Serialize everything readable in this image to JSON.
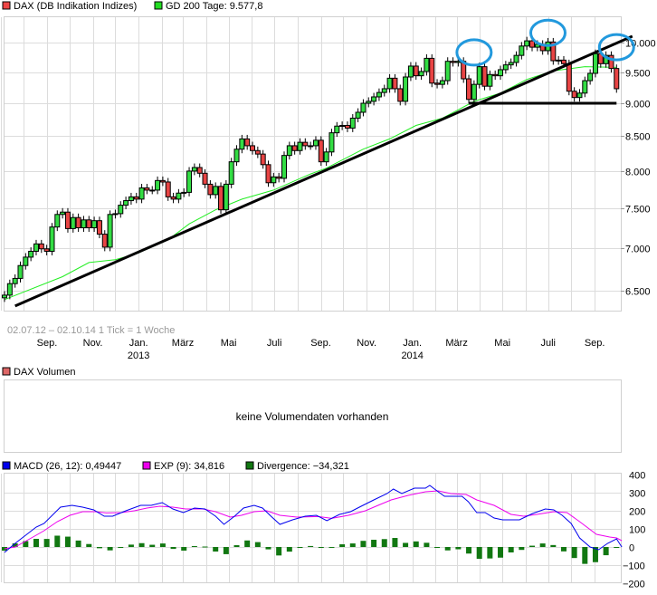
{
  "legend": {
    "price": {
      "label": "DAX (DB Indikation Indizes)",
      "color": "#ee4444"
    },
    "gd200": {
      "label": "GD 200 Tage: 9.577,8",
      "color": "#22dd22"
    },
    "volume": {
      "label": "DAX Volumen",
      "color": "#dd6666"
    },
    "macd": {
      "label": "MACD (26, 12): 0,49447",
      "color": "#0000ee"
    },
    "exp": {
      "label": "EXP (9): 34,816",
      "color": "#ee00ee"
    },
    "divergence": {
      "label": "Divergence: −34,321",
      "color": "#117711"
    }
  },
  "range_note": "02.07.12 – 02.10.14   1 Tick = 1 Woche",
  "volume_message": "keine Volumendaten vorhanden",
  "chart_data": [
    {
      "type": "candlestick",
      "scale": "log",
      "ylim": [
        6300,
        10200
      ],
      "grid": true,
      "start_date": "2012-07-02",
      "end_date": "2014-10-02",
      "interval": "week",
      "y_ticks": [
        {
          "value": 6500,
          "label": "6.500"
        },
        {
          "value": 7000,
          "label": "7.000"
        },
        {
          "value": 7500,
          "label": "7.500"
        },
        {
          "value": 8000,
          "label": "8.000"
        },
        {
          "value": 8500,
          "label": "8.500"
        },
        {
          "value": 9000,
          "label": "9.000"
        },
        {
          "value": 9500,
          "label": "9.500"
        },
        {
          "value": 10000,
          "label": "10.000"
        }
      ],
      "x_ticks": [
        {
          "date": "2012-09-01",
          "label": "Sep."
        },
        {
          "date": "2012-11-01",
          "label": "Nov."
        },
        {
          "date": "2013-01-01",
          "label": "Jan.",
          "year": "2013"
        },
        {
          "date": "2013-03-01",
          "label": "März"
        },
        {
          "date": "2013-05-01",
          "label": "Mai"
        },
        {
          "date": "2013-07-01",
          "label": "Juli"
        },
        {
          "date": "2013-09-01",
          "label": "Sep."
        },
        {
          "date": "2013-11-01",
          "label": "Nov."
        },
        {
          "date": "2014-01-01",
          "label": "Jan.",
          "year": "2014"
        },
        {
          "date": "2014-03-01",
          "label": "März"
        },
        {
          "date": "2014-05-01",
          "label": "Mai"
        },
        {
          "date": "2014-07-01",
          "label": "Juli"
        },
        {
          "date": "2014-09-01",
          "label": "Sep."
        }
      ],
      "first_open": 6420,
      "weekly_close": [
        6450,
        6580,
        6640,
        6790,
        6890,
        6960,
        7050,
        6990,
        6960,
        7260,
        7420,
        7450,
        7240,
        7380,
        7250,
        7350,
        7250,
        7340,
        7170,
        7010,
        7420,
        7430,
        7540,
        7600,
        7650,
        7620,
        7770,
        7740,
        7740,
        7870,
        7850,
        7650,
        7620,
        7700,
        7710,
        8000,
        8050,
        7970,
        7820,
        7680,
        7790,
        7480,
        7820,
        8130,
        8310,
        8460,
        8360,
        8290,
        8240,
        8090,
        7840,
        7920,
        7900,
        8220,
        8360,
        8290,
        8410,
        8360,
        8360,
        8440,
        8130,
        8270,
        8550,
        8650,
        8660,
        8620,
        8770,
        8860,
        9000,
        9030,
        9100,
        9170,
        9230,
        9400,
        9230,
        9030,
        9420,
        9600,
        9440,
        9510,
        9730,
        9320,
        9300,
        9360,
        9680,
        9660,
        9680,
        9390,
        9060,
        9300,
        9590,
        9270,
        9460,
        9440,
        9540,
        9620,
        9660,
        9780,
        9940,
        10030,
        9920,
        9970,
        9860,
        10010,
        9690,
        9700,
        9640,
        9190,
        9090,
        9160,
        9360,
        9480,
        9810,
        9640,
        9780,
        9560,
        9230
      ],
      "gd200": [
        [
          0,
          6400
        ],
        [
          11,
          6660
        ],
        [
          16,
          6825
        ],
        [
          21,
          6860
        ],
        [
          25,
          6930
        ],
        [
          31,
          7100
        ],
        [
          35,
          7300
        ],
        [
          40,
          7480
        ],
        [
          45,
          7620
        ],
        [
          51,
          7740
        ],
        [
          58,
          7960
        ],
        [
          61,
          8040
        ],
        [
          68,
          8310
        ],
        [
          73,
          8460
        ],
        [
          78,
          8660
        ],
        [
          83,
          8770
        ],
        [
          89,
          9030
        ],
        [
          94,
          9160
        ],
        [
          99,
          9380
        ],
        [
          104,
          9520
        ],
        [
          110,
          9590
        ],
        [
          116,
          9578
        ]
      ],
      "annotations": {
        "trend_line": [
          [
            2,
            6330
          ],
          [
            119,
            10110
          ]
        ],
        "support_line": {
          "value": 9000,
          "from_week": 88,
          "to_week": 116
        },
        "circles": [
          [
            89,
            9830
          ],
          [
            103,
            10170
          ],
          [
            116,
            9920
          ]
        ],
        "circle_color": "#2299dd"
      }
    },
    {
      "type": "line",
      "ylim": [
        -200,
        400
      ],
      "y_ticks": [
        400,
        300,
        200,
        100,
        0,
        -100,
        -200
      ],
      "grid": true,
      "series": [
        {
          "name": "MACD (26, 12)",
          "color": "#0000ee",
          "points": [
            [
              0,
              -30
            ],
            [
              2,
              20
            ],
            [
              6,
              110
            ],
            [
              7.5,
              130
            ],
            [
              10.6,
              220
            ],
            [
              12.8,
              230
            ],
            [
              14.8,
              220
            ],
            [
              16.9,
              205
            ],
            [
              18.9,
              170
            ],
            [
              20.5,
              170
            ],
            [
              23,
              200
            ],
            [
              25.8,
              230
            ],
            [
              27.8,
              230
            ],
            [
              29.9,
              245
            ],
            [
              31.9,
              210
            ],
            [
              33.9,
              190
            ],
            [
              36,
              215
            ],
            [
              38,
              210
            ],
            [
              40,
              170
            ],
            [
              41.6,
              125
            ],
            [
              43.6,
              170
            ],
            [
              45.3,
              215
            ],
            [
              47.3,
              230
            ],
            [
              48.9,
              215
            ],
            [
              50.5,
              170
            ],
            [
              52.2,
              125
            ],
            [
              54.6,
              150
            ],
            [
              57,
              170
            ],
            [
              59.1,
              175
            ],
            [
              61.1,
              145
            ],
            [
              63.5,
              180
            ],
            [
              65.6,
              195
            ],
            [
              67.6,
              225
            ],
            [
              70,
              260
            ],
            [
              72.5,
              295
            ],
            [
              73.7,
              320
            ],
            [
              75.3,
              295
            ],
            [
              77.7,
              325
            ],
            [
              79.8,
              325
            ],
            [
              80.6,
              340
            ],
            [
              82.2,
              305
            ],
            [
              83.4,
              280
            ],
            [
              86.7,
              280
            ],
            [
              87.9,
              250
            ],
            [
              89.5,
              190
            ],
            [
              91.1,
              190
            ],
            [
              92.8,
              160
            ],
            [
              94.4,
              150
            ],
            [
              97.6,
              150
            ],
            [
              100.1,
              185
            ],
            [
              102.5,
              210
            ],
            [
              104.1,
              205
            ],
            [
              105.7,
              175
            ],
            [
              107.4,
              130
            ],
            [
              109,
              50
            ],
            [
              111,
              0
            ],
            [
              112.6,
              -15
            ],
            [
              114.3,
              20
            ],
            [
              116,
              45
            ],
            [
              117,
              0
            ]
          ]
        },
        {
          "name": "EXP (9)",
          "color": "#ee00ee",
          "points": [
            [
              0,
              -10
            ],
            [
              2,
              0
            ],
            [
              5.1,
              50
            ],
            [
              7.5,
              90
            ],
            [
              10,
              140
            ],
            [
              12.4,
              175
            ],
            [
              14.8,
              195
            ],
            [
              17.3,
              195
            ],
            [
              19.3,
              188
            ],
            [
              22.1,
              190
            ],
            [
              24.6,
              200
            ],
            [
              27,
              215
            ],
            [
              29.4,
              225
            ],
            [
              31.9,
              220
            ],
            [
              34.3,
              210
            ],
            [
              37.6,
              210
            ],
            [
              40,
              195
            ],
            [
              42.8,
              165
            ],
            [
              44.9,
              175
            ],
            [
              47.3,
              195
            ],
            [
              49.7,
              200
            ],
            [
              52.2,
              175
            ],
            [
              55.4,
              165
            ],
            [
              59.5,
              168
            ],
            [
              62,
              158
            ],
            [
              65.2,
              175
            ],
            [
              68.4,
              200
            ],
            [
              70.8,
              230
            ],
            [
              73.3,
              260
            ],
            [
              76.5,
              285
            ],
            [
              79.8,
              305
            ],
            [
              82.2,
              310
            ],
            [
              84.6,
              295
            ],
            [
              87.5,
              290
            ],
            [
              89.5,
              260
            ],
            [
              92.8,
              230
            ],
            [
              96,
              180
            ],
            [
              98.4,
              170
            ],
            [
              100.9,
              180
            ],
            [
              104.1,
              195
            ],
            [
              106.6,
              190
            ],
            [
              109,
              140
            ],
            [
              112.2,
              70
            ],
            [
              114.7,
              55
            ],
            [
              116,
              50
            ],
            [
              117,
              35
            ]
          ]
        },
        {
          "name": "Divergence",
          "type": "bar",
          "color": "#117711"
        }
      ]
    }
  ]
}
